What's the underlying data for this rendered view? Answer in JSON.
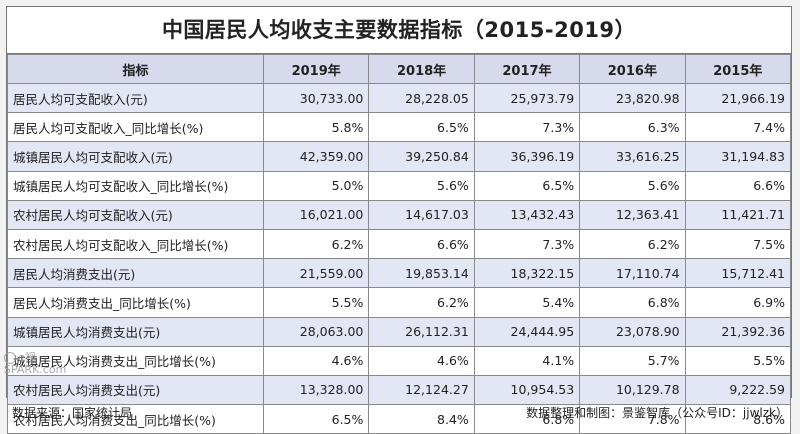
{
  "title": "中国居民人均收支主要数据指标（2015-2019）",
  "table": {
    "headers": [
      "指标",
      "2019年",
      "2018年",
      "2017年",
      "2016年",
      "2015年"
    ],
    "rows": [
      {
        "label": "居民人均可支配收入(元)",
        "values": [
          "30,733.00",
          "28,228.05",
          "25,973.79",
          "23,820.98",
          "21,966.19"
        ]
      },
      {
        "label": "居民人均可支配收入_同比增长(%)",
        "values": [
          "5.8%",
          "6.5%",
          "7.3%",
          "6.3%",
          "7.4%"
        ]
      },
      {
        "label": "城镇居民人均可支配收入(元)",
        "values": [
          "42,359.00",
          "39,250.84",
          "36,396.19",
          "33,616.25",
          "31,194.83"
        ]
      },
      {
        "label": "城镇居民人均可支配收入_同比增长(%)",
        "values": [
          "5.0%",
          "5.6%",
          "6.5%",
          "5.6%",
          "6.6%"
        ]
      },
      {
        "label": "农村居民人均可支配收入(元)",
        "values": [
          "16,021.00",
          "14,617.03",
          "13,432.43",
          "12,363.41",
          "11,421.71"
        ]
      },
      {
        "label": "农村居民人均可支配收入_同比增长(%)",
        "values": [
          "6.2%",
          "6.6%",
          "7.3%",
          "6.2%",
          "7.5%"
        ]
      },
      {
        "label": "居民人均消费支出(元)",
        "values": [
          "21,559.00",
          "19,853.14",
          "18,322.15",
          "17,110.74",
          "15,712.41"
        ]
      },
      {
        "label": "居民人均消费支出_同比增长(%)",
        "values": [
          "5.5%",
          "6.2%",
          "5.4%",
          "6.8%",
          "6.9%"
        ]
      },
      {
        "label": "城镇居民人均消费支出(元)",
        "values": [
          "28,063.00",
          "26,112.31",
          "24,444.95",
          "23,078.90",
          "21,392.36"
        ]
      },
      {
        "label": "城镇居民人均消费支出_同比增长(%)",
        "values": [
          "4.6%",
          "4.6%",
          "4.1%",
          "5.7%",
          "5.5%"
        ]
      },
      {
        "label": "农村居民人均消费支出(元)",
        "values": [
          "13,328.00",
          "12,124.27",
          "10,954.53",
          "10,129.78",
          "9,222.59"
        ]
      },
      {
        "label": "农村居民人均消费支出_同比增长(%)",
        "values": [
          "6.5%",
          "8.4%",
          "6.8%",
          "7.8%",
          "8.6%"
        ]
      }
    ]
  },
  "footer": {
    "source": "数据来源：国家统计局",
    "credit": "数据整理和制图：景鉴智库（公众号ID：jjwlzk）"
  },
  "watermark": {
    "text1": "e视",
    "text2": "SPARK.com"
  },
  "colors": {
    "header_bg": "#d7d9ec",
    "shaded_row_bg": "#e3e6f4",
    "border": "#8a8a8a"
  }
}
